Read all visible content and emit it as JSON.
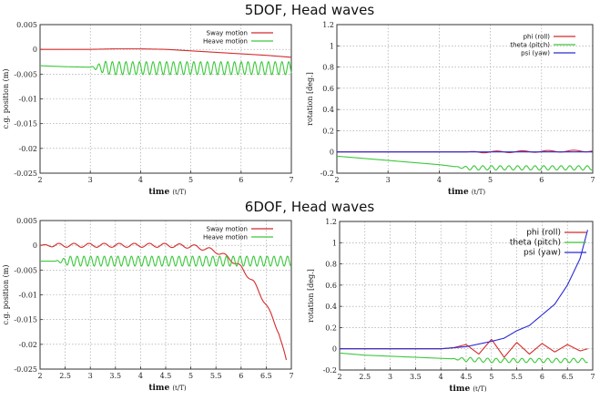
{
  "titles": {
    "top": "5DOF, Head waves",
    "bottom": "6DOF, Head waves"
  },
  "colors": {
    "sway": "#d42a2a",
    "heave": "#3cc83c",
    "phi": "#d42a2a",
    "theta": "#3cc83c",
    "psi": "#2a2ad4"
  },
  "chart_data": [
    {
      "type": "line",
      "xlabel_main": "time",
      "xlabel_unit": "(t/T)",
      "ylabel": "c.g. position (m)",
      "xlim": [
        2,
        7
      ],
      "ylim": [
        -0.025,
        0.005
      ],
      "xticks": [
        "2",
        "3",
        "4",
        "5",
        "6",
        "7"
      ],
      "yticks": [
        "0.005",
        "0",
        "-0.005",
        "-0.01",
        "-0.015",
        "-0.02",
        "-0.025"
      ],
      "grid": true,
      "legend_position": "top-right",
      "series": [
        {
          "name": "Sway motion",
          "x": [
            2.0,
            2.5,
            3.0,
            3.5,
            4.0,
            4.5,
            5.0,
            5.5,
            6.0,
            6.5,
            7.0
          ],
          "y": [
            0.0,
            0.0,
            0.0,
            0.0001,
            0.0001,
            0.0,
            -0.0003,
            -0.0006,
            -0.0009,
            -0.0012,
            -0.0016
          ]
        },
        {
          "name": "Heave motion",
          "x": [
            2.0,
            2.5,
            3.0,
            3.5,
            4.0,
            4.5,
            5.0,
            5.5,
            6.0,
            6.5,
            7.0
          ],
          "y": [
            -0.0033,
            -0.0035,
            -0.0036,
            -0.0038,
            -0.0038,
            -0.0038,
            -0.0038,
            -0.0038,
            -0.0038,
            -0.0038,
            -0.0038
          ],
          "oscillation_amplitude": 0.0013,
          "oscillation_start": 3.0,
          "oscillation_period": 0.135
        }
      ]
    },
    {
      "type": "line",
      "xlabel_main": "time",
      "xlabel_unit": "(t/T)",
      "ylabel": "rotation [deg.]",
      "xlim": [
        2,
        7
      ],
      "ylim": [
        -0.2,
        1.2
      ],
      "xticks": [
        "2",
        "3",
        "4",
        "5",
        "6",
        "7"
      ],
      "yticks": [
        "1.2",
        "1",
        "0.8",
        "0.6",
        "0.4",
        "0.2",
        "0",
        "-0.2"
      ],
      "grid": true,
      "legend_position": "top-right",
      "series": [
        {
          "name": "phi   (roll)",
          "x": [
            2.0,
            3.0,
            4.0,
            5.0,
            6.0,
            7.0
          ],
          "y": [
            0.0,
            0.0,
            0.0,
            0.0,
            0.005,
            0.01
          ],
          "oscillation_amplitude": 0.008,
          "oscillation_start": 4.5,
          "oscillation_period": 0.5
        },
        {
          "name": "theta (pitch)",
          "x": [
            2.0,
            2.5,
            3.0,
            3.5,
            4.0,
            4.5,
            5.0,
            5.5,
            6.0,
            6.5,
            7.0
          ],
          "y": [
            -0.04,
            -0.06,
            -0.08,
            -0.1,
            -0.12,
            -0.15,
            -0.15,
            -0.15,
            -0.15,
            -0.15,
            -0.15
          ],
          "oscillation_amplitude": 0.02,
          "oscillation_start": 4.3,
          "oscillation_period": 0.17
        },
        {
          "name": "psi   (yaw)",
          "x": [
            2.0,
            7.0
          ],
          "y": [
            0.0,
            0.0
          ]
        }
      ]
    },
    {
      "type": "line",
      "xlabel_main": "time",
      "xlabel_unit": "(t/T)",
      "ylabel": "c.g. position (m)",
      "xlim": [
        2,
        7
      ],
      "ylim": [
        -0.025,
        0.005
      ],
      "xticks": [
        "2",
        "2.5",
        "3",
        "3.5",
        "4",
        "4.5",
        "5",
        "5.5",
        "6",
        "6.5",
        "7"
      ],
      "yticks": [
        "0.005",
        "0",
        "-0.005",
        "-0.01",
        "-0.015",
        "-0.02",
        "-0.025"
      ],
      "grid": true,
      "legend_position": "top-right",
      "series": [
        {
          "name": "Sway motion",
          "x": [
            2.0,
            2.5,
            3.0,
            3.5,
            4.0,
            4.5,
            5.0,
            5.25,
            5.5,
            5.75,
            6.0,
            6.25,
            6.5,
            6.75,
            6.9
          ],
          "y": [
            0.0,
            0.0,
            0.0,
            0.0,
            0.0,
            0.0,
            -0.0002,
            -0.0006,
            -0.0012,
            -0.0025,
            -0.0045,
            -0.0075,
            -0.012,
            -0.0175,
            -0.0235
          ],
          "oscillation_amplitude": 0.0004,
          "oscillation_start": 2.0,
          "oscillation_period": 0.3
        },
        {
          "name": "Heave motion",
          "x": [
            2.0,
            7.0
          ],
          "y": [
            -0.0032,
            -0.0032
          ],
          "oscillation_amplitude": 0.001,
          "oscillation_start": 2.3,
          "oscillation_period": 0.135
        }
      ]
    },
    {
      "type": "line",
      "xlabel_main": "time",
      "xlabel_unit": "(t/T)",
      "ylabel": "rotation [deg.]",
      "xlim": [
        2,
        7
      ],
      "ylim": [
        -0.2,
        1.2
      ],
      "xticks": [
        "2",
        "2.5",
        "3",
        "3.5",
        "4",
        "4.5",
        "5",
        "5.5",
        "6",
        "6.5",
        "7"
      ],
      "yticks": [
        "1.2",
        "1",
        "0.8",
        "0.6",
        "0.4",
        "0.2",
        "0",
        "-0.2"
      ],
      "grid": true,
      "legend_position": "top-right",
      "series": [
        {
          "name": "phi   (roll)",
          "x": [
            2.0,
            4.0,
            4.25,
            4.5,
            4.75,
            5.0,
            5.25,
            5.5,
            5.75,
            6.0,
            6.25,
            6.5,
            6.75,
            6.9
          ],
          "y": [
            0.0,
            0.0,
            0.01,
            0.04,
            -0.05,
            0.09,
            -0.08,
            0.06,
            -0.05,
            0.05,
            -0.03,
            0.04,
            -0.02,
            0.0
          ]
        },
        {
          "name": "theta (pitch)",
          "x": [
            2.0,
            2.5,
            3.0,
            3.5,
            4.0,
            4.5,
            5.0,
            5.5,
            6.0,
            6.5,
            6.9
          ],
          "y": [
            -0.04,
            -0.06,
            -0.07,
            -0.08,
            -0.09,
            -0.1,
            -0.11,
            -0.11,
            -0.11,
            -0.11,
            -0.11
          ],
          "oscillation_amplitude": 0.02,
          "oscillation_start": 4.2,
          "oscillation_period": 0.17
        },
        {
          "name": "psi   (yaw)",
          "x": [
            2.0,
            4.0,
            4.5,
            5.0,
            5.25,
            5.5,
            5.75,
            6.0,
            6.25,
            6.5,
            6.75,
            6.9
          ],
          "y": [
            0.0,
            0.0,
            0.02,
            0.07,
            0.1,
            0.17,
            0.22,
            0.32,
            0.42,
            0.6,
            0.85,
            1.12
          ]
        }
      ]
    }
  ]
}
